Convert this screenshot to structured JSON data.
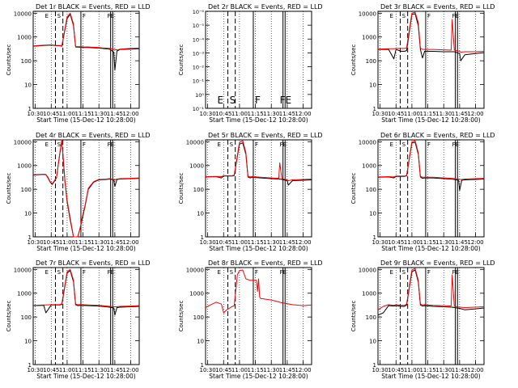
{
  "figure": {
    "x_axis_title": "Start Time (15-Dec-12 10:28:00)",
    "y_axis_title": "Counts/sec",
    "x_tick_labels": [
      "10:30",
      "10:45",
      "11:00",
      "11:15",
      "11:30",
      "11:45",
      "12:00"
    ],
    "x_tick_minutes": [
      630,
      645,
      660,
      675,
      690,
      705,
      720
    ],
    "y_tick_labels_log": [
      "1",
      "10",
      "100",
      "1000",
      "10000"
    ],
    "y_tick_labels_empty": [
      "10⁻¹",
      "10⁰",
      "10⁻¹",
      "10⁻²",
      "10⁻³",
      "10⁻⁴",
      "10⁻⁵",
      "10⁻⁶"
    ],
    "marker_labels": {
      "E": "E",
      "S": "S",
      "F": "F",
      "FE": "FE"
    },
    "colors": {
      "events": "#000000",
      "lld": "#ff0000"
    }
  },
  "chart_data": [
    {
      "type": "line",
      "title": "Det 1r BLACK = Events, RED = LLD",
      "xlim": [
        "10:28",
        "12:08"
      ],
      "yscale": "log",
      "ylim": [
        1,
        12000
      ],
      "series": [
        {
          "color": "black",
          "x": [
            "10:28",
            "10:38",
            "10:45",
            "10:50",
            "10:53",
            "10:55",
            "11:00",
            "11:03",
            "11:06",
            "11:08",
            "11:12",
            "11:16",
            "11:20",
            "11:30",
            "11:33",
            "11:40",
            "11:44",
            "11:45",
            "11:47",
            "11:48",
            "11:50",
            "12:00",
            "12:08"
          ],
          "y": [
            410,
            440,
            460,
            430,
            430,
            410,
            6000,
            9000,
            3000,
            380,
            370,
            360,
            360,
            340,
            330,
            310,
            230,
            40,
            260,
            270,
            300,
            310,
            320
          ]
        },
        {
          "color": "red",
          "x": [
            "10:28",
            "10:38",
            "10:45",
            "10:50",
            "10:53",
            "10:55",
            "11:00",
            "11:03",
            "11:06",
            "11:08",
            "11:12",
            "11:16",
            "11:20",
            "11:30",
            "11:33",
            "11:40",
            "11:44",
            "11:45",
            "11:47",
            "11:48",
            "11:50",
            "12:00",
            "12:08"
          ],
          "y": [
            420,
            450,
            470,
            440,
            440,
            420,
            7000,
            10000,
            3500,
            400,
            390,
            380,
            380,
            360,
            350,
            330,
            300,
            300,
            290,
            290,
            310,
            330,
            340
          ]
        }
      ]
    },
    {
      "type": "line",
      "title": "Det 2r BLACK = Events, RED = LLD",
      "xlim": [
        "10:28",
        "12:08"
      ],
      "yscale": "log",
      "series": []
    },
    {
      "type": "line",
      "title": "Det 3r BLACK = Events, RED = LLD",
      "xlim": [
        "10:28",
        "12:08"
      ],
      "yscale": "log",
      "ylim": [
        1,
        12000
      ],
      "series": [
        {
          "color": "black",
          "x": [
            "10:28",
            "10:38",
            "10:43",
            "10:45",
            "10:50",
            "10:53",
            "10:55",
            "11:00",
            "11:03",
            "11:06",
            "11:08",
            "11:10",
            "11:12",
            "11:20",
            "11:30",
            "11:37",
            "11:38",
            "11:40",
            "11:45",
            "11:46",
            "11:50",
            "12:00",
            "12:08"
          ],
          "y": [
            300,
            300,
            120,
            300,
            250,
            250,
            270,
            9000,
            9500,
            3000,
            300,
            130,
            250,
            250,
            240,
            240,
            240,
            240,
            200,
            100,
            180,
            200,
            220
          ]
        },
        {
          "color": "red",
          "x": [
            "10:28",
            "10:38",
            "10:43",
            "10:45",
            "10:50",
            "10:53",
            "10:55",
            "11:00",
            "11:03",
            "11:06",
            "11:08",
            "11:10",
            "11:12",
            "11:20",
            "11:30",
            "11:37",
            "11:38",
            "11:40",
            "11:45",
            "11:46",
            "11:50",
            "12:00",
            "12:08"
          ],
          "y": [
            310,
            320,
            320,
            330,
            330,
            330,
            350,
            10000,
            11000,
            4000,
            340,
            300,
            300,
            300,
            290,
            280,
            5500,
            280,
            250,
            230,
            240,
            240,
            250
          ]
        }
      ]
    },
    {
      "type": "line",
      "title": "Det 4r BLACK = Events, RED = LLD",
      "xlim": [
        "10:28",
        "12:08"
      ],
      "yscale": "log",
      "ylim": [
        1,
        12000
      ],
      "series": [
        {
          "color": "black",
          "x": [
            "10:28",
            "10:38",
            "10:40",
            "10:42",
            "10:44",
            "10:46",
            "10:50",
            "10:53",
            "10:55",
            "10:58",
            "11:00",
            "11:03",
            "11:06",
            "11:08",
            "11:10",
            "11:12",
            "11:14",
            "11:17",
            "11:20",
            "11:25",
            "11:30",
            "11:37",
            "11:40",
            "11:44",
            "11:45",
            "11:47",
            "11:50",
            "12:00",
            "12:08"
          ],
          "y": [
            400,
            420,
            410,
            300,
            200,
            160,
            300,
            3000,
            11000,
            200,
            30,
            5,
            1,
            1,
            1,
            2,
            5,
            20,
            100,
            200,
            250,
            260,
            270,
            250,
            130,
            260,
            270,
            280,
            290
          ]
        },
        {
          "color": "red",
          "x": [
            "10:28",
            "10:38",
            "10:40",
            "10:42",
            "10:44",
            "10:46",
            "10:50",
            "10:53",
            "10:55",
            "10:58",
            "11:00",
            "11:03",
            "11:06",
            "11:08",
            "11:10",
            "11:12",
            "11:14",
            "11:17",
            "11:20",
            "11:25",
            "11:30",
            "11:37",
            "11:40",
            "11:44",
            "11:45",
            "11:47",
            "11:50",
            "12:00",
            "12:08"
          ],
          "y": [
            410,
            430,
            420,
            320,
            210,
            170,
            310,
            3200,
            12000,
            220,
            35,
            6,
            1,
            1,
            1,
            2,
            6,
            22,
            110,
            210,
            260,
            270,
            280,
            260,
            250,
            270,
            280,
            290,
            300
          ]
        }
      ]
    },
    {
      "type": "line",
      "title": "Det 5r BLACK = Events, RED = LLD",
      "xlim": [
        "10:28",
        "12:08"
      ],
      "yscale": "log",
      "ylim": [
        1,
        12000
      ],
      "series": [
        {
          "color": "black",
          "x": [
            "10:28",
            "10:38",
            "10:43",
            "10:45",
            "10:50",
            "10:53",
            "10:55",
            "11:00",
            "11:03",
            "11:06",
            "11:08",
            "11:10",
            "11:12",
            "11:20",
            "11:30",
            "11:37",
            "11:38",
            "11:40",
            "11:45",
            "11:46",
            "11:50",
            "12:00",
            "12:08"
          ],
          "y": [
            330,
            340,
            300,
            360,
            360,
            360,
            380,
            8000,
            9000,
            3000,
            330,
            300,
            320,
            300,
            280,
            270,
            270,
            260,
            230,
            150,
            230,
            240,
            250
          ]
        },
        {
          "color": "red",
          "x": [
            "10:28",
            "10:38",
            "10:43",
            "10:45",
            "10:50",
            "10:53",
            "10:55",
            "11:00",
            "11:03",
            "11:06",
            "11:08",
            "11:10",
            "11:12",
            "11:20",
            "11:30",
            "11:37",
            "11:38",
            "11:40",
            "11:45",
            "11:46",
            "11:50",
            "12:00",
            "12:08"
          ],
          "y": [
            340,
            350,
            340,
            370,
            370,
            370,
            400,
            9500,
            11000,
            3500,
            350,
            330,
            340,
            320,
            300,
            290,
            1300,
            280,
            250,
            230,
            250,
            260,
            270
          ]
        }
      ]
    },
    {
      "type": "line",
      "title": "Det 6r BLACK = Events, RED = LLD",
      "xlim": [
        "10:28",
        "12:08"
      ],
      "yscale": "log",
      "ylim": [
        1,
        12000
      ],
      "series": [
        {
          "color": "black",
          "x": [
            "10:28",
            "10:38",
            "10:43",
            "10:45",
            "10:50",
            "10:53",
            "10:55",
            "11:00",
            "11:03",
            "11:06",
            "11:08",
            "11:10",
            "11:12",
            "11:20",
            "11:30",
            "11:37",
            "11:40",
            "11:44",
            "11:45",
            "11:47",
            "11:50",
            "12:00",
            "12:08"
          ],
          "y": [
            320,
            330,
            300,
            350,
            350,
            350,
            370,
            9000,
            9500,
            3000,
            330,
            290,
            300,
            300,
            280,
            270,
            260,
            240,
            90,
            240,
            250,
            260,
            270
          ]
        },
        {
          "color": "red",
          "x": [
            "10:28",
            "10:38",
            "10:43",
            "10:45",
            "10:50",
            "10:53",
            "10:55",
            "11:00",
            "11:03",
            "11:06",
            "11:08",
            "11:10",
            "11:12",
            "11:20",
            "11:30",
            "11:37",
            "11:40",
            "11:44",
            "11:45",
            "11:47",
            "11:50",
            "12:00",
            "12:08"
          ],
          "y": [
            330,
            340,
            330,
            360,
            360,
            360,
            390,
            10000,
            11000,
            3500,
            350,
            320,
            320,
            320,
            300,
            290,
            280,
            270,
            260,
            260,
            270,
            280,
            290
          ]
        }
      ]
    },
    {
      "type": "line",
      "title": "Det 7r BLACK = Events, RED = LLD",
      "xlim": [
        "10:28",
        "12:08"
      ],
      "yscale": "log",
      "ylim": [
        1,
        12000
      ],
      "series": [
        {
          "color": "black",
          "x": [
            "10:28",
            "10:38",
            "10:40",
            "10:45",
            "10:50",
            "10:53",
            "10:55",
            "11:00",
            "11:03",
            "11:06",
            "11:08",
            "11:10",
            "11:12",
            "11:20",
            "11:30",
            "11:40",
            "11:44",
            "11:45",
            "11:47",
            "11:50",
            "12:00",
            "12:08"
          ],
          "y": [
            300,
            310,
            150,
            320,
            320,
            320,
            340,
            7000,
            9000,
            3000,
            330,
            300,
            310,
            300,
            290,
            260,
            240,
            120,
            250,
            260,
            270,
            280
          ]
        },
        {
          "color": "red",
          "x": [
            "10:28",
            "10:38",
            "10:40",
            "10:45",
            "10:50",
            "10:53",
            "10:55",
            "11:00",
            "11:03",
            "11:06",
            "11:08",
            "11:10",
            "11:12",
            "11:20",
            "11:30",
            "11:40",
            "11:44",
            "11:45",
            "11:47",
            "11:50",
            "12:00",
            "12:08"
          ],
          "y": [
            310,
            320,
            320,
            330,
            330,
            330,
            360,
            8000,
            10000,
            3500,
            350,
            330,
            330,
            320,
            310,
            280,
            270,
            270,
            270,
            280,
            290,
            300
          ]
        }
      ]
    },
    {
      "type": "line",
      "title": "Det 8r BLACK = Events, RED = LLD",
      "xlim": [
        "10:28",
        "12:08"
      ],
      "yscale": "log",
      "ylim": [
        1,
        12000
      ],
      "series": [
        {
          "color": "red",
          "x": [
            "10:28",
            "10:33",
            "10:38",
            "10:43",
            "10:45",
            "10:48",
            "10:52",
            "10:55",
            "10:58",
            "11:00",
            "11:03",
            "11:06",
            "11:10",
            "11:14",
            "11:16",
            "11:17",
            "11:18",
            "11:19",
            "11:20",
            "11:30",
            "11:40",
            "11:50",
            "12:00",
            "12:08"
          ],
          "y": [
            250,
            330,
            420,
            350,
            150,
            200,
            260,
            300,
            6000,
            9000,
            9500,
            4000,
            3500,
            3500,
            3500,
            1200,
            4000,
            700,
            600,
            520,
            400,
            330,
            300,
            320
          ]
        }
      ]
    },
    {
      "type": "line",
      "title": "Det 9r BLACK = Events, RED = LLD",
      "xlim": [
        "10:28",
        "12:08"
      ],
      "yscale": "log",
      "ylim": [
        1,
        12000
      ],
      "series": [
        {
          "color": "black",
          "x": [
            "10:28",
            "10:33",
            "10:38",
            "10:43",
            "10:45",
            "10:50",
            "10:53",
            "10:55",
            "11:00",
            "11:03",
            "11:06",
            "11:08",
            "11:10",
            "11:12",
            "11:20",
            "11:30",
            "11:37",
            "11:38",
            "11:40",
            "11:45",
            "11:50",
            "12:00",
            "12:08"
          ],
          "y": [
            120,
            150,
            300,
            290,
            300,
            280,
            280,
            320,
            8000,
            9500,
            3000,
            320,
            290,
            300,
            280,
            270,
            260,
            260,
            250,
            230,
            200,
            220,
            240
          ]
        },
        {
          "color": "red",
          "x": [
            "10:28",
            "10:33",
            "10:38",
            "10:43",
            "10:45",
            "10:50",
            "10:53",
            "10:55",
            "11:00",
            "11:03",
            "11:06",
            "11:08",
            "11:10",
            "11:12",
            "11:20",
            "11:30",
            "11:37",
            "11:38",
            "11:40",
            "11:45",
            "11:50",
            "12:00",
            "12:08"
          ],
          "y": [
            200,
            280,
            330,
            310,
            330,
            310,
            310,
            350,
            9500,
            11000,
            3500,
            350,
            320,
            330,
            310,
            300,
            290,
            6000,
            280,
            260,
            250,
            260,
            270
          ]
        }
      ]
    }
  ]
}
